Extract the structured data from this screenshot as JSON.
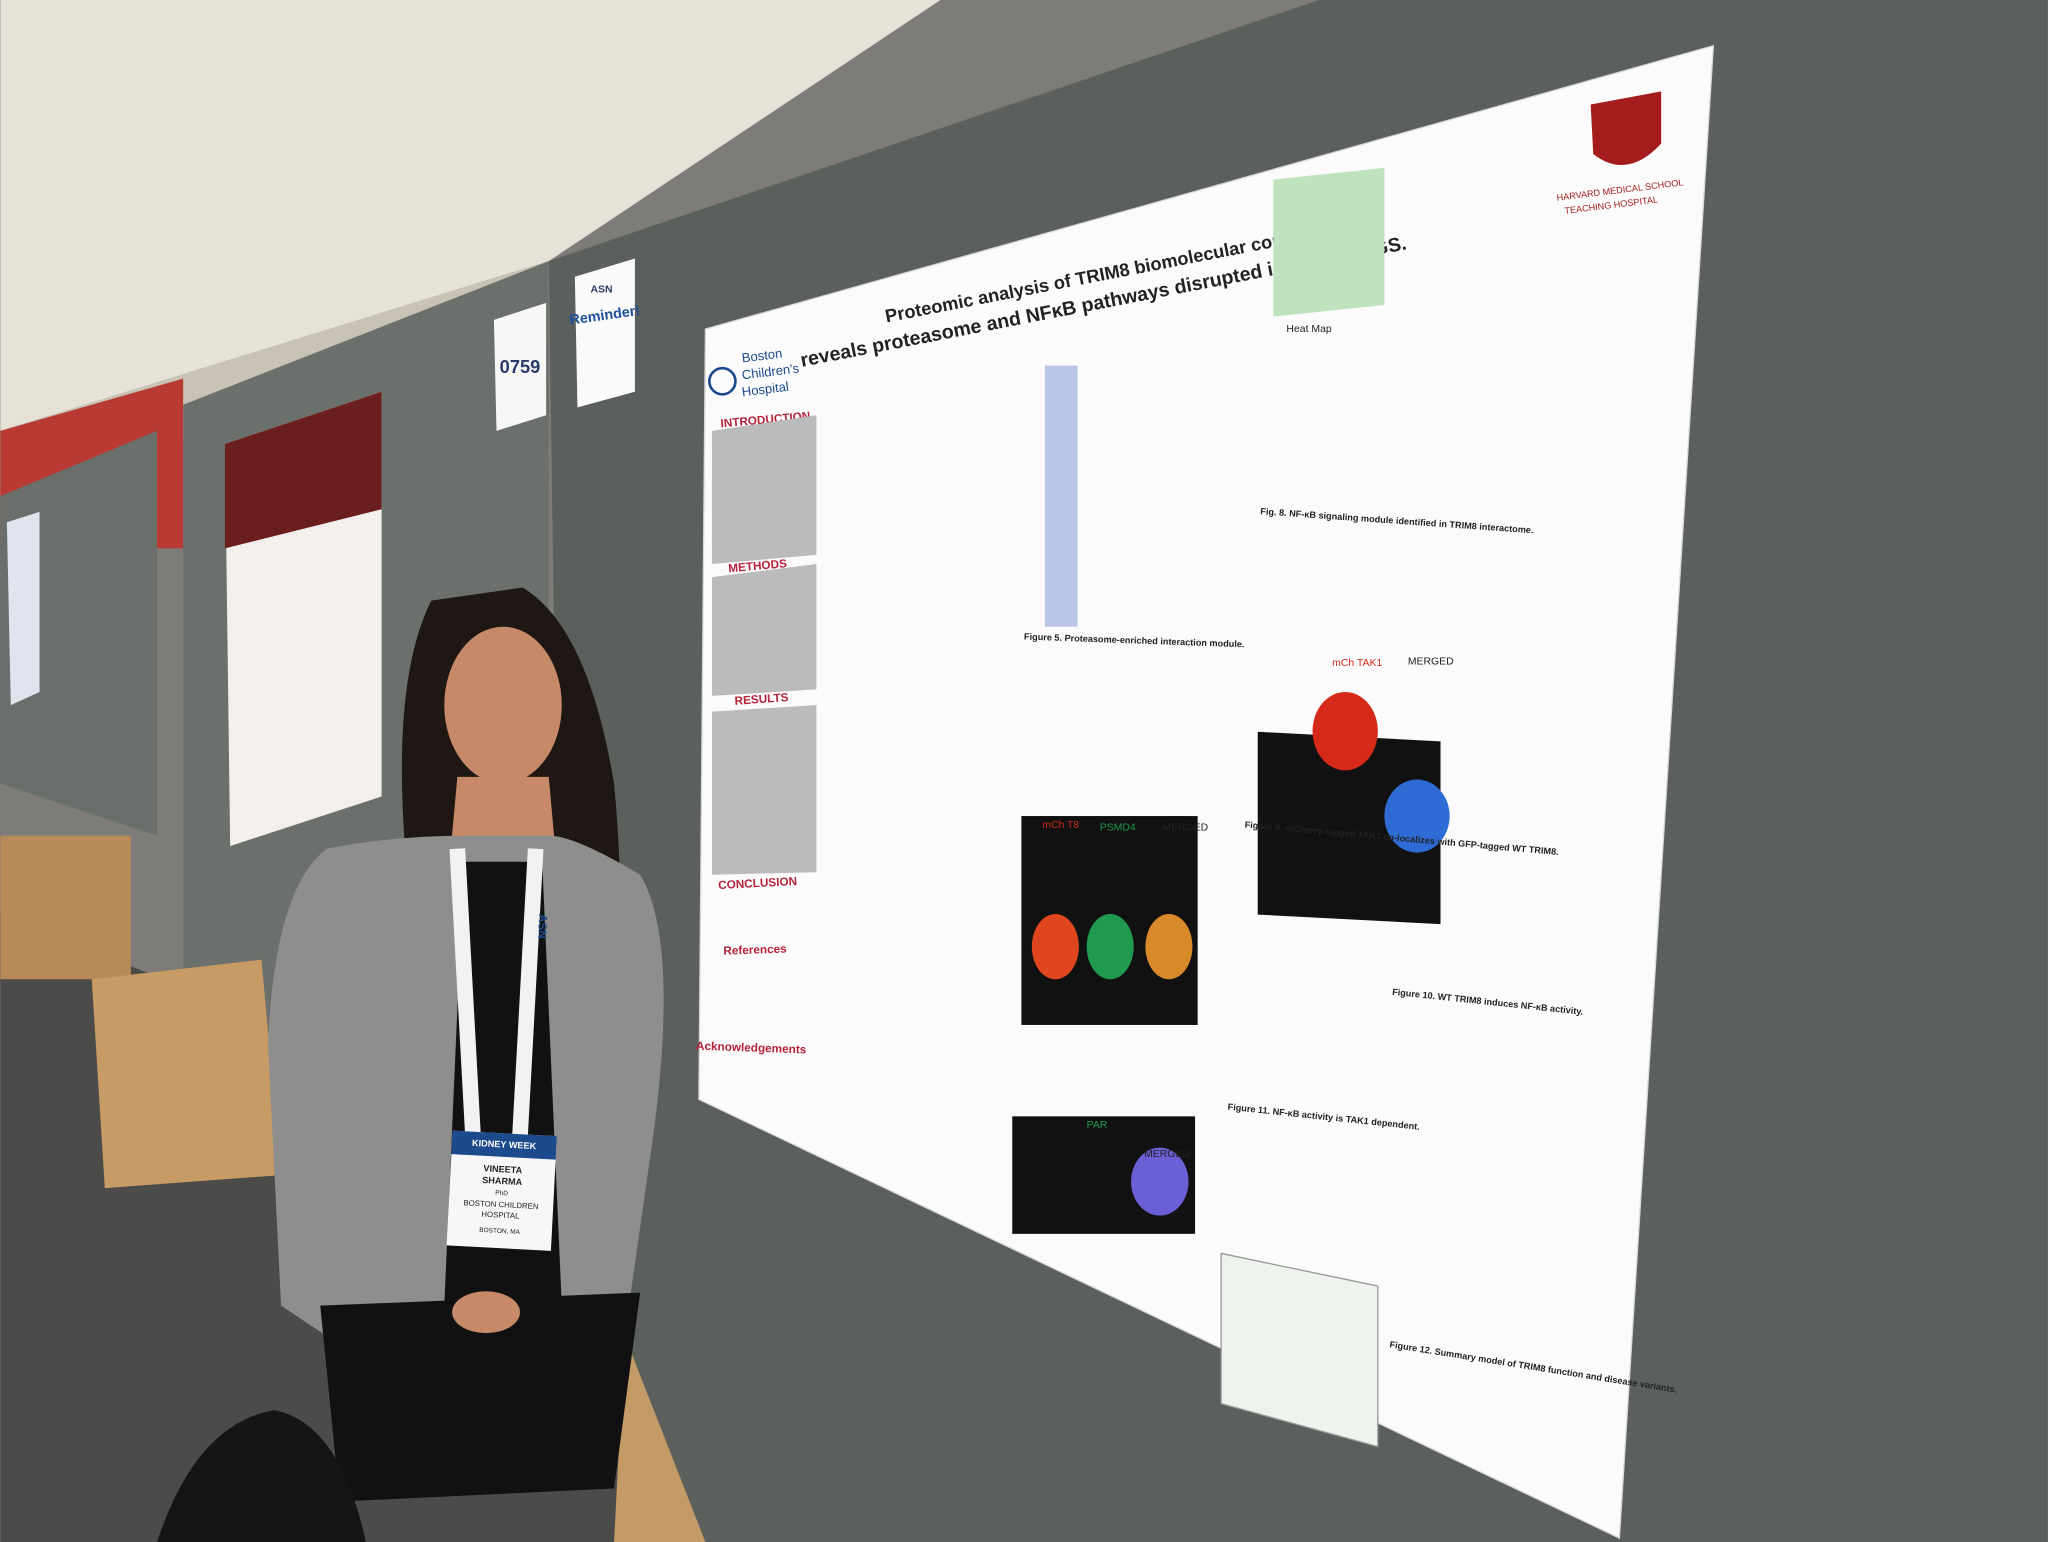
{
  "poster": {
    "title_line1": "Proteomic analysis of TRIM8 biomolecular condensates",
    "title_line2": "reveals proteasome and NFκB pathways disrupted in SRNS/FSGS.",
    "institution_left": [
      "Boston",
      "Children's",
      "Hospital"
    ],
    "institution_right": [
      "HARVARD MEDICAL SCHOOL",
      "TEACHING HOSPITAL"
    ],
    "sections": [
      "INTRODUCTION",
      "METHODS",
      "RESULTS",
      "CONCLUSION",
      "References",
      "Acknowledgements"
    ],
    "panel_labels": [
      "Heat Map",
      "mCh TAK1",
      "MERGED",
      "mCh T8",
      "PSMD4",
      "MERGED",
      "PAR",
      "MERGED"
    ],
    "captions": [
      "Fig. 8. NF-κB signaling module identified in TRIM8 interactome.",
      "Figure 9. mCherry-tagged TAK1 co-localizes with GFP-tagged WT TRIM8.",
      "Figure 10. WT TRIM8 induces NF-κB activity.",
      "Figure 11. NF-κB activity is TAK1 dependent.",
      "Figure 12. Summary model of TRIM8 function and disease variants.",
      "Figure 5. Proteasome-enriched interaction module."
    ]
  },
  "signs": {
    "number": "0759",
    "reminder": "Reminder!",
    "asn": "ASN"
  },
  "badge": {
    "event": "KIDNEY WEEK",
    "name": [
      "VINEETA",
      "SHARMA"
    ],
    "degree": "PhD",
    "org": [
      "BOSTON CHILDREN",
      "HOSPITAL"
    ],
    "city": "BOSTON, MA"
  },
  "lanyard": "ASN"
}
